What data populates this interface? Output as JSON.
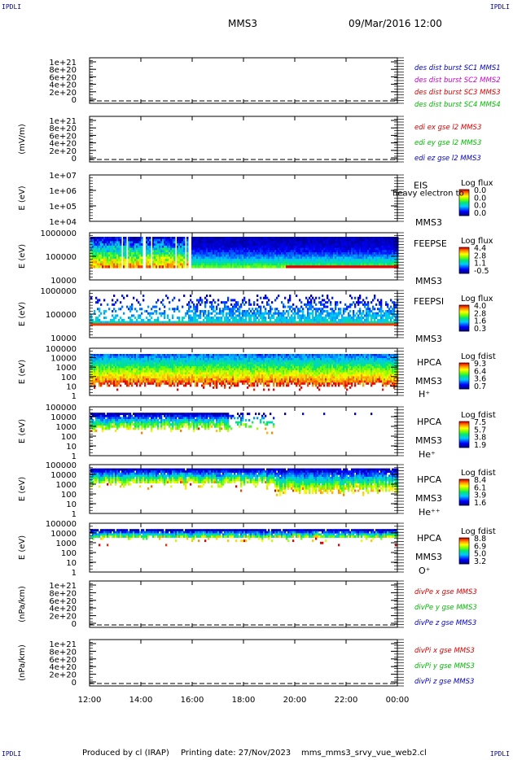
{
  "corners": {
    "tl": "IPDLI",
    "tr": "IPDLI",
    "bl": "IPDLI",
    "br": "IPDLI"
  },
  "header": {
    "title": "MMS3",
    "datetime": "09/Mar/2016 12:00"
  },
  "footer": {
    "producer": "Produced by cl (IRAP)",
    "printing": "Printing date: 27/Nov/2023",
    "file": "mms_mms3_srvy_vue_web2.cl"
  },
  "x_axis": {
    "ticks": [
      "12:00",
      "14:00",
      "16:00",
      "18:00",
      "20:00",
      "22:00",
      "00:00"
    ]
  },
  "colors": {
    "blue": "#0000cc",
    "magenta": "#cc00cc",
    "red": "#dd0000",
    "green": "#00bb00",
    "dash": "#000000"
  },
  "chart_data": [
    {
      "type": "line",
      "panel": "des_dist",
      "ylabel": "",
      "yticks": [
        "1e+21",
        "8e+20",
        "6e+20",
        "4e+20",
        "2e+20",
        "0"
      ],
      "series": [
        {
          "name": "des dist burst SC1 MMS1",
          "color": "#0000cc"
        },
        {
          "name": "des dist burst SC2 MMS2",
          "color": "#cc00cc"
        },
        {
          "name": "des dist burst SC3 MMS3",
          "color": "#dd0000"
        },
        {
          "name": "des dist burst SC4 MMS4",
          "color": "#00bb00"
        }
      ]
    },
    {
      "type": "line",
      "panel": "edi",
      "ylabel": "(mV/m)",
      "yticks": [
        "1e+21",
        "8e+20",
        "6e+20",
        "4e+20",
        "2e+20",
        "0"
      ],
      "series": [
        {
          "name": "edi ex gse l2 MMS3",
          "color": "#dd0000"
        },
        {
          "name": "edi ey gse l2 MMS3",
          "color": "#00bb00"
        },
        {
          "name": "edi ez gse l2 MMS3",
          "color": "#0000cc"
        }
      ]
    },
    {
      "type": "heatmap",
      "panel": "eis",
      "ylabel": "E (eV)",
      "yticks": [
        "1e+07",
        "1e+06",
        "1e+05",
        "1e+04"
      ],
      "label": [
        "EIS",
        "MMS3"
      ],
      "overlay": "heavy electron to",
      "colorbar": {
        "title": "Log flux",
        "ticks": [
          "0.0",
          "0.0",
          "0.0",
          "0.0"
        ]
      }
    },
    {
      "type": "heatmap",
      "panel": "feeps_e",
      "ylabel": "E (eV)",
      "yticks": [
        "1000000",
        "100000",
        "10000"
      ],
      "label": [
        "FEEPSE",
        "MMS3"
      ],
      "colorbar": {
        "title": "Log flux",
        "ticks": [
          "4.4",
          "2.8",
          "1.1",
          "-0.5"
        ]
      }
    },
    {
      "type": "heatmap",
      "panel": "feeps_i",
      "ylabel": "E (eV)",
      "yticks": [
        "1000000",
        "100000",
        "10000"
      ],
      "label": [
        "FEEPSI",
        "MMS3"
      ],
      "colorbar": {
        "title": "Log flux",
        "ticks": [
          "4.0",
          "2.8",
          "1.6",
          "0.3"
        ]
      }
    },
    {
      "type": "heatmap",
      "panel": "hpca_h",
      "ylabel": "E (eV)",
      "yticks": [
        "100000",
        "10000",
        "1000",
        "100",
        "10",
        "1"
      ],
      "label": [
        "HPCA",
        "MMS3",
        "H⁺"
      ],
      "colorbar": {
        "title": "Log fdist",
        "ticks": [
          "9.3",
          "6.4",
          "3.6",
          "0.7"
        ]
      }
    },
    {
      "type": "heatmap",
      "panel": "hpca_he",
      "ylabel": "E (eV)",
      "yticks": [
        "100000",
        "10000",
        "1000",
        "100",
        "10",
        "1"
      ],
      "label": [
        "HPCA",
        "MMS3",
        "He⁺"
      ],
      "colorbar": {
        "title": "Log fdist",
        "ticks": [
          "7.5",
          "5.7",
          "3.8",
          "1.9"
        ]
      }
    },
    {
      "type": "heatmap",
      "panel": "hpca_hepp",
      "ylabel": "E (eV)",
      "yticks": [
        "100000",
        "10000",
        "1000",
        "100",
        "10",
        "1"
      ],
      "label": [
        "HPCA",
        "MMS3",
        "He⁺⁺"
      ],
      "colorbar": {
        "title": "Log fdist",
        "ticks": [
          "8.4",
          "6.1",
          "3.9",
          "1.6"
        ]
      }
    },
    {
      "type": "heatmap",
      "panel": "hpca_o",
      "ylabel": "E (eV)",
      "yticks": [
        "100000",
        "10000",
        "1000",
        "100",
        "10",
        "1"
      ],
      "label": [
        "HPCA",
        "MMS3",
        "O⁺"
      ],
      "colorbar": {
        "title": "Log fdist",
        "ticks": [
          "8.8",
          "6.9",
          "5.0",
          "3.2"
        ]
      }
    },
    {
      "type": "line",
      "panel": "divpe",
      "ylabel": "(nPa/km)",
      "yticks": [
        "1e+21",
        "8e+20",
        "6e+20",
        "4e+20",
        "2e+20",
        "0"
      ],
      "series": [
        {
          "name": "divPe x gse MMS3",
          "color": "#dd0000"
        },
        {
          "name": "divPe y gse MMS3",
          "color": "#00bb00"
        },
        {
          "name": "divPe z gse MMS3",
          "color": "#0000cc"
        }
      ]
    },
    {
      "type": "line",
      "panel": "divpi",
      "ylabel": "(nPa/km)",
      "yticks": [
        "1e+21",
        "8e+20",
        "6e+20",
        "4e+20",
        "2e+20",
        "0"
      ],
      "series": [
        {
          "name": "divPi x gse MMS3",
          "color": "#dd0000"
        },
        {
          "name": "divPi y gse MMS3",
          "color": "#00bb00"
        },
        {
          "name": "divPi z gse MMS3",
          "color": "#0000cc"
        }
      ]
    }
  ]
}
